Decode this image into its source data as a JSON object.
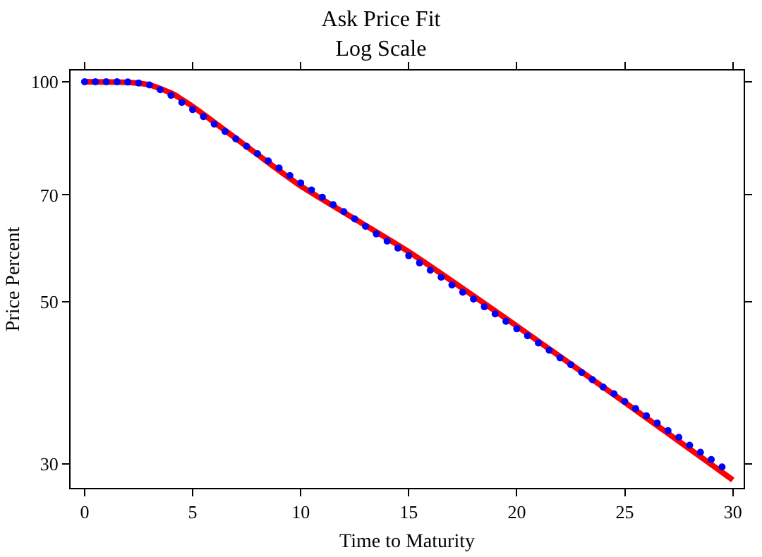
{
  "chart_data": {
    "type": "scatter",
    "title": "Ask Price Fit",
    "subtitle": "Log Scale",
    "xlabel": "Time to Maturity",
    "ylabel": "Price Percent",
    "log": "y",
    "legend": false,
    "xlim": [
      -0.65,
      30.5
    ],
    "xticks": [
      0,
      5,
      10,
      15,
      20,
      25,
      30
    ],
    "ylim": [
      27.8,
      103.6
    ],
    "yticks": [
      30,
      50,
      70,
      100
    ],
    "series": [
      {
        "marker": "circle",
        "color": "#0000ff",
        "x": [
          0,
          0.5,
          1,
          1.5,
          2,
          2.5,
          3,
          3.5,
          4,
          4.5,
          5,
          5.5,
          6,
          6.5,
          7,
          7.5,
          8,
          8.5,
          9,
          9.5,
          10,
          10.5,
          11,
          11.5,
          12,
          12.5,
          13,
          13.5,
          14,
          14.5,
          15,
          15.5,
          16,
          16.5,
          17,
          17.5,
          18,
          18.5,
          19,
          19.5,
          20,
          20.5,
          21,
          21.5,
          22,
          22.5,
          23,
          23.5,
          24,
          24.5,
          25,
          25.5,
          26,
          26.5,
          27,
          27.5,
          28,
          28.5,
          29,
          29.5
        ],
        "values": [
          100,
          100,
          100,
          100,
          99.9,
          99.6,
          99.0,
          97.5,
          95.8,
          93.7,
          91.6,
          89.6,
          87.5,
          85.5,
          83.5,
          81.6,
          79.7,
          77.9,
          76.2,
          74.4,
          72.7,
          71.1,
          69.5,
          67.9,
          66.4,
          64.9,
          63.4,
          61.9,
          60.5,
          59.2,
          57.8,
          56.5,
          55.2,
          54.0,
          52.7,
          51.5,
          50.4,
          49.2,
          48.1,
          47.0,
          45.9,
          44.9,
          43.9,
          42.9,
          41.9,
          41.0,
          40.0,
          39.1,
          38.2,
          37.4,
          36.5,
          35.7,
          34.9,
          34.1,
          33.3,
          32.6,
          31.8,
          31.1,
          30.4,
          29.7
        ]
      },
      {
        "type": "line",
        "marker": "none",
        "line_style": "solid",
        "color": "#ff0000",
        "x": [
          0,
          2,
          3,
          4,
          5,
          6,
          8,
          10,
          15,
          20,
          25,
          30
        ],
        "values": [
          100,
          99.8,
          99,
          96.5,
          92.5,
          88,
          79.5,
          72,
          58.5,
          46.3,
          36.4,
          28.5
        ]
      }
    ]
  }
}
